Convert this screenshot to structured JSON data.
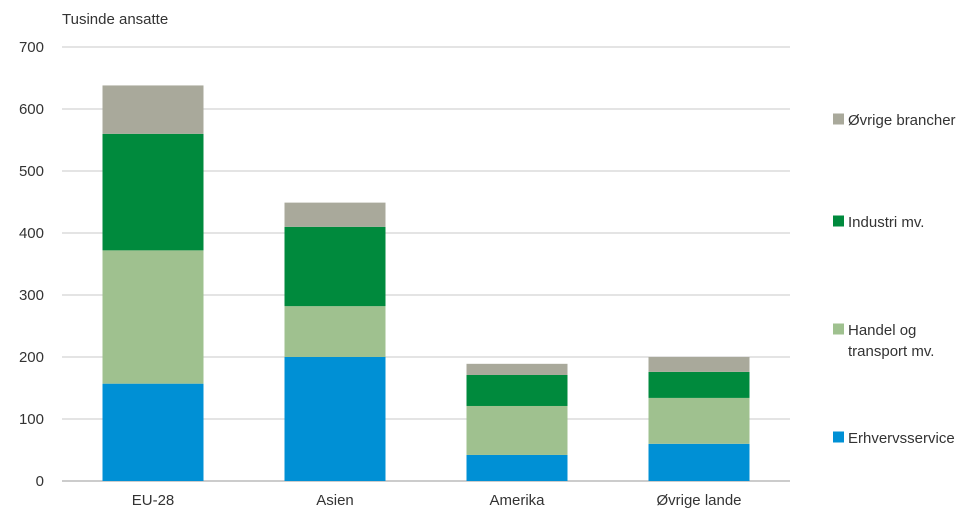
{
  "chart_data": {
    "type": "bar",
    "stacked": true,
    "ylabel": "Tusinde ansatte",
    "ylim": [
      0,
      700
    ],
    "yticks": [
      0,
      100,
      200,
      300,
      400,
      500,
      600,
      700
    ],
    "grid": true,
    "legend_position": "right",
    "categories": [
      "EU-28",
      "Asien",
      "Amerika",
      "Øvrige lande"
    ],
    "series": [
      {
        "name": "Erhvervsservice",
        "color": "#0090d5",
        "values": [
          157,
          200,
          42,
          60
        ]
      },
      {
        "name": "Handel og transport mv.",
        "legend_lines": [
          "Handel og",
          "transport mv."
        ],
        "color": "#9fc18f",
        "values": [
          215,
          82,
          79,
          74
        ]
      },
      {
        "name": "Industri mv.",
        "color": "#008a3d",
        "values": [
          188,
          128,
          50,
          42
        ]
      },
      {
        "name": "Øvrige brancher",
        "color": "#a9a99b",
        "values": [
          78,
          39,
          18,
          24
        ]
      }
    ]
  }
}
